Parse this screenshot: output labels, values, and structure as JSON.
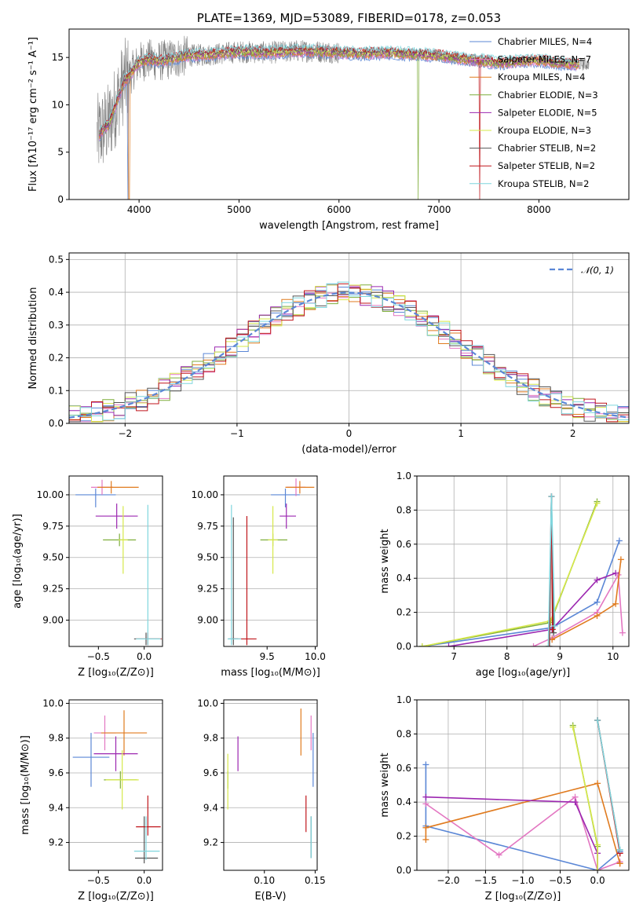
{
  "colors": {
    "chabrier_miles": "#5b87d6",
    "salpeter_miles": "#e377c2",
    "kroupa_miles": "#e07b1f",
    "chabrier_elodie": "#7fae3c",
    "salpeter_elodie": "#9c27b0",
    "kroupa_elodie": "#d6e84a",
    "chabrier_stelib": "#555555",
    "salpeter_stelib": "#c0161c",
    "kroupa_stelib": "#7fd6de",
    "gaussian": "#5b87d6",
    "grid": "#b0b0b0"
  },
  "chart_data": [
    {
      "id": "spectrum",
      "type": "line",
      "title": "PLATE=1369, MJD=53089, FIBERID=0178, z=0.053",
      "xlabel": "wavelength [Angstrom, rest frame]",
      "ylabel": "Flux [fλ10⁻¹⁷ erg cm⁻² s⁻¹ A⁻¹]",
      "xlim": [
        3300,
        8900
      ],
      "ylim": [
        0,
        18
      ],
      "xticks": [
        "4000",
        "5000",
        "6000",
        "7000",
        "8000"
      ],
      "yticks": [
        "0",
        "5",
        "10",
        "15"
      ],
      "grid": false,
      "legend_position": "top-right",
      "legend": [
        "Chabrier MILES, N_SSP=4",
        "Salpeter MILES, N_SSP=7",
        "Kroupa MILES, N_SSP=4",
        "Chabrier ELODIE, N_SSP=3",
        "Salpeter ELODIE, N_SSP=5",
        "Kroupa ELODIE, N_SSP=3",
        "Chabrier STELIB, N_SSP=2",
        "Salpeter STELIB, N_SSP=2",
        "Kroupa STELIB, N_SSP=2"
      ],
      "model_continuum": {
        "x": [
          3600,
          3650,
          3700,
          3750,
          3800,
          3850,
          3900,
          3950,
          4000,
          4100,
          4200,
          4300,
          4400,
          4500,
          4700,
          5000,
          5300,
          5600,
          5900,
          6200,
          6500,
          6800,
          7000,
          7200,
          7400,
          7600,
          7800,
          8000,
          8200,
          8400
        ],
        "y": [
          6.8,
          7.5,
          8.0,
          9.5,
          11.0,
          12.5,
          13.0,
          13.8,
          14.5,
          14.8,
          14.6,
          14.8,
          15.0,
          15.2,
          15.3,
          15.6,
          15.5,
          15.7,
          15.6,
          15.4,
          15.5,
          15.3,
          15.2,
          14.9,
          14.7,
          14.4,
          14.6,
          14.7,
          14.4,
          14.3
        ]
      }
    },
    {
      "id": "residual-histogram",
      "type": "step-histogram",
      "xlabel": "(data-model)/error",
      "ylabel": "Normed distribution",
      "xlim": [
        -2.5,
        2.5
      ],
      "ylim": [
        0,
        0.52
      ],
      "xticks": [
        "−2",
        "−1",
        "0",
        "1",
        "2"
      ],
      "yticks": [
        "0.0",
        "0.1",
        "0.2",
        "0.3",
        "0.4",
        "0.5"
      ],
      "grid": true,
      "legend_position": "top-right",
      "legend": [
        "𝒩(0, 1)"
      ],
      "bin_width": 0.1
    },
    {
      "id": "age-vs-Z",
      "type": "errorbar",
      "xlabel": "Z [log₁₀(Z/Z⊙)]",
      "ylabel": "age  [log₁₀(age/yr)]",
      "xlim": [
        -0.82,
        0.2
      ],
      "ylim": [
        8.79,
        10.15
      ],
      "xticks": [
        "−0.5",
        "0.0"
      ],
      "xtick_values": [
        -0.5,
        0.0
      ],
      "yticks": [
        "9.00",
        "9.25",
        "9.50",
        "9.75",
        "10.00"
      ],
      "ytick_values": [
        9.0,
        9.25,
        9.5,
        9.75,
        10.0
      ],
      "points": [
        {
          "series": "Chabrier MILES",
          "x": -0.53,
          "xerr": [
            0.22,
            0.22
          ],
          "y": 10.0,
          "yerr": [
            0.1,
            0.05
          ]
        },
        {
          "series": "Salpeter MILES",
          "x": -0.46,
          "xerr": [
            0.12,
            0.12
          ],
          "y": 10.06,
          "yerr": [
            0.06,
            0.06
          ]
        },
        {
          "series": "Kroupa MILES",
          "x": -0.36,
          "xerr": [
            0.15,
            0.3
          ],
          "y": 10.06,
          "yerr": [
            0.05,
            0.05
          ]
        },
        {
          "series": "Chabrier ELODIE",
          "x": -0.27,
          "xerr": [
            0.18,
            0.18
          ],
          "y": 9.64,
          "yerr": [
            0.05,
            0.05
          ]
        },
        {
          "series": "Salpeter ELODIE",
          "x": -0.3,
          "xerr": [
            0.23,
            0.23
          ],
          "y": 9.83,
          "yerr": [
            0.1,
            0.1
          ]
        },
        {
          "series": "Kroupa ELODIE",
          "x": -0.23,
          "xerr": [
            0.05,
            0.05
          ],
          "y": 9.64,
          "yerr": [
            0.27,
            0.27
          ]
        },
        {
          "series": "Chabrier STELIB",
          "x": 0.02,
          "xerr": [
            0.13,
            0.15
          ],
          "y": 8.85,
          "yerr": [
            0.05,
            0.05
          ]
        },
        {
          "series": "Salpeter STELIB",
          "x": 0.04,
          "xerr": [
            0.13,
            0.15
          ],
          "y": 8.85,
          "yerr": [
            0.05,
            0.05
          ]
        },
        {
          "series": "Kroupa STELIB",
          "x": 0.04,
          "xerr": [
            0.13,
            0.14
          ],
          "y": 8.85,
          "yerr": [
            0.05,
            1.07
          ]
        }
      ]
    },
    {
      "id": "age-vs-mass",
      "type": "errorbar",
      "xlabel": "mass [log₁₀(M/M⊙)]",
      "ylabel": "",
      "xlim": [
        9.05,
        10.02
      ],
      "ylim": [
        8.79,
        10.15
      ],
      "xticks": [
        "9.5",
        "10.0"
      ],
      "xtick_values": [
        9.5,
        10.0
      ],
      "yticks": [
        "9.00",
        "9.25",
        "9.50",
        "9.75",
        "10.00"
      ],
      "ytick_values": [
        9.0,
        9.25,
        9.5,
        9.75,
        10.0
      ],
      "points": [
        {
          "series": "Chabrier MILES",
          "x": 9.69,
          "xerr": [
            0.15,
            0.15
          ],
          "y": 10.0,
          "yerr": [
            0.1,
            0.05
          ]
        },
        {
          "series": "Salpeter MILES",
          "x": 9.8,
          "xerr": [
            0.1,
            0.1
          ],
          "y": 10.06,
          "yerr": [
            0.07,
            0.07
          ]
        },
        {
          "series": "Kroupa MILES",
          "x": 9.84,
          "xerr": [
            0.15,
            0.15
          ],
          "y": 10.06,
          "yerr": [
            0.05,
            0.05
          ]
        },
        {
          "series": "Chabrier ELODIE",
          "x": 9.56,
          "xerr": [
            0.13,
            0.15
          ],
          "y": 9.64,
          "yerr": [
            0.05,
            0.05
          ]
        },
        {
          "series": "Salpeter ELODIE",
          "x": 9.7,
          "xerr": [
            0.07,
            0.1
          ],
          "y": 9.83,
          "yerr": [
            0.1,
            0.1
          ]
        },
        {
          "series": "Kroupa ELODIE",
          "x": 9.56,
          "xerr": [
            0.05,
            0.05
          ],
          "y": 9.64,
          "yerr": [
            0.27,
            0.27
          ]
        },
        {
          "series": "Chabrier STELIB",
          "x": 9.15,
          "xerr": [
            0.05,
            0.05
          ],
          "y": 8.85,
          "yerr": [
            0.05,
            0.97
          ]
        },
        {
          "series": "Salpeter STELIB",
          "x": 9.29,
          "xerr": [
            0.15,
            0.1
          ],
          "y": 8.85,
          "yerr": [
            0.05,
            0.98
          ]
        },
        {
          "series": "Kroupa STELIB",
          "x": 9.13,
          "xerr": [
            0.04,
            0.1
          ],
          "y": 8.85,
          "yerr": [
            0.05,
            1.07
          ]
        }
      ]
    },
    {
      "id": "mass-weight-vs-age",
      "type": "line",
      "xlabel": "age  [log₁₀(age/yr)]",
      "ylabel": "mass weight",
      "xlim": [
        6.3,
        10.3
      ],
      "ylim": [
        0,
        1
      ],
      "xticks": [
        "7",
        "8",
        "9",
        "10"
      ],
      "xtick_values": [
        7,
        8,
        9,
        10
      ],
      "yticks": [
        "0.0",
        "0.2",
        "0.4",
        "0.6",
        "0.8",
        "1.0"
      ],
      "ytick_values": [
        0,
        0.2,
        0.4,
        0.6,
        0.8,
        1.0
      ],
      "grid": true,
      "series": [
        {
          "name": "Chabrier MILES",
          "x": [
            6.4,
            8.85,
            9.7,
            10.12
          ],
          "y": [
            0.0,
            0.11,
            0.26,
            0.62
          ]
        },
        {
          "name": "Salpeter MILES",
          "x": [
            8.5,
            8.85,
            9.7,
            10.1,
            10.18
          ],
          "y": [
            0.0,
            0.05,
            0.2,
            0.42,
            0.08
          ]
        },
        {
          "name": "Kroupa MILES",
          "x": [
            8.85,
            9.7,
            10.05,
            10.15
          ],
          "y": [
            0.04,
            0.18,
            0.25,
            0.51
          ]
        },
        {
          "name": "Chabrier ELODIE",
          "x": [
            6.4,
            8.82,
            9.7
          ],
          "y": [
            0.0,
            0.14,
            0.85
          ]
        },
        {
          "name": "Salpeter ELODIE",
          "x": [
            6.9,
            8.85,
            9.7,
            10.05
          ],
          "y": [
            0.0,
            0.1,
            0.39,
            0.43
          ]
        },
        {
          "name": "Kroupa ELODIE",
          "x": [
            6.4,
            8.82,
            9.7
          ],
          "y": [
            0.0,
            0.15,
            0.84
          ]
        },
        {
          "name": "Chabrier STELIB",
          "x": [
            8.8,
            8.84,
            8.88
          ],
          "y": [
            0.0,
            0.88,
            0.08
          ]
        },
        {
          "name": "Salpeter STELIB",
          "x": [
            8.79,
            8.84,
            8.86
          ],
          "y": [
            0.0,
            0.88,
            0.1
          ]
        },
        {
          "name": "Kroupa STELIB",
          "x": [
            8.78,
            8.84,
            8.9
          ],
          "y": [
            0.0,
            0.88,
            0.12
          ]
        }
      ]
    },
    {
      "id": "mass-vs-Z",
      "type": "errorbar",
      "xlabel": "Z [log₁₀(Z/Z⊙)]",
      "ylabel": "mass [log₁₀(M/M⊙)]",
      "xlim": [
        -0.82,
        0.2
      ],
      "ylim": [
        9.04,
        10.02
      ],
      "xticks": [
        "−0.5",
        "0.0"
      ],
      "xtick_values": [
        -0.5,
        0.0
      ],
      "yticks": [
        "9.2",
        "9.4",
        "9.6",
        "9.8",
        "10.0"
      ],
      "ytick_values": [
        9.2,
        9.4,
        9.6,
        9.8,
        10.0
      ],
      "points": [
        {
          "series": "Chabrier MILES",
          "x": -0.58,
          "xerr": [
            0.2,
            0.2
          ],
          "y": 9.69,
          "yerr": [
            0.17,
            0.14
          ]
        },
        {
          "series": "Salpeter MILES",
          "x": -0.43,
          "xerr": [
            0.12,
            0.12
          ],
          "y": 9.83,
          "yerr": [
            0.1,
            0.1
          ]
        },
        {
          "series": "Kroupa MILES",
          "x": -0.22,
          "xerr": [
            0.25,
            0.25
          ],
          "y": 9.83,
          "yerr": [
            0.13,
            0.13
          ]
        },
        {
          "series": "Chabrier ELODIE",
          "x": -0.26,
          "xerr": [
            0.18,
            0.18
          ],
          "y": 9.56,
          "yerr": [
            0.05,
            0.05
          ]
        },
        {
          "series": "Salpeter ELODIE",
          "x": -0.31,
          "xerr": [
            0.24,
            0.24
          ],
          "y": 9.71,
          "yerr": [
            0.1,
            0.1
          ]
        },
        {
          "series": "Kroupa ELODIE",
          "x": -0.24,
          "xerr": [
            0.18,
            0.18
          ],
          "y": 9.56,
          "yerr": [
            0.17,
            0.17
          ]
        },
        {
          "series": "Chabrier STELIB",
          "x": 0.0,
          "xerr": [
            0.1,
            0.15
          ],
          "y": 9.11,
          "yerr": [
            0.03,
            0.24
          ]
        },
        {
          "series": "Salpeter STELIB",
          "x": 0.04,
          "xerr": [
            0.13,
            0.14
          ],
          "y": 9.29,
          "yerr": [
            0.05,
            0.18
          ]
        },
        {
          "series": "Kroupa STELIB",
          "x": 0.02,
          "xerr": [
            0.13,
            0.15
          ],
          "y": 9.15,
          "yerr": [
            0.05,
            0.2
          ]
        }
      ]
    },
    {
      "id": "mass-vs-EBV",
      "type": "errorbar",
      "xlabel": "E(B-V)",
      "ylabel": "",
      "xlim": [
        0.06,
        0.152
      ],
      "ylim": [
        9.04,
        10.02
      ],
      "xticks": [
        "0.10",
        "0.15"
      ],
      "xtick_values": [
        0.1,
        0.15
      ],
      "yticks": [
        "9.2",
        "9.4",
        "9.6",
        "9.8",
        "10.0"
      ],
      "ytick_values": [
        9.2,
        9.4,
        9.6,
        9.8,
        10.0
      ],
      "points": [
        {
          "series": "Chabrier MILES",
          "x": 0.148,
          "xerr": [
            0,
            0
          ],
          "y": 9.69,
          "yerr": [
            0.17,
            0.14
          ]
        },
        {
          "series": "Salpeter MILES",
          "x": 0.146,
          "xerr": [
            0,
            0
          ],
          "y": 9.83,
          "yerr": [
            0.1,
            0.1
          ]
        },
        {
          "series": "Kroupa MILES",
          "x": 0.136,
          "xerr": [
            0,
            0
          ],
          "y": 9.83,
          "yerr": [
            0.13,
            0.14
          ]
        },
        {
          "series": "Chabrier ELODIE",
          "x": 0.064,
          "xerr": [
            0,
            0
          ],
          "y": 9.56,
          "yerr": [
            0.05,
            0.05
          ]
        },
        {
          "series": "Salpeter ELODIE",
          "x": 0.074,
          "xerr": [
            0,
            0
          ],
          "y": 9.71,
          "yerr": [
            0.1,
            0.1
          ]
        },
        {
          "series": "Kroupa ELODIE",
          "x": 0.064,
          "xerr": [
            0,
            0
          ],
          "y": 9.56,
          "yerr": [
            0.17,
            0.15
          ]
        },
        {
          "series": "Chabrier STELIB",
          "x": 0.146,
          "xerr": [
            0,
            0
          ],
          "y": 9.25,
          "yerr": [
            0.14,
            0.1
          ]
        },
        {
          "series": "Salpeter STELIB",
          "x": 0.141,
          "xerr": [
            0,
            0
          ],
          "y": 9.37,
          "yerr": [
            0.11,
            0.1
          ]
        },
        {
          "series": "Kroupa STELIB",
          "x": 0.146,
          "xerr": [
            0,
            0
          ],
          "y": 9.25,
          "yerr": [
            0.14,
            0.1
          ]
        }
      ]
    },
    {
      "id": "mass-weight-vs-Z",
      "type": "line",
      "xlabel": "Z [log₁₀(Z/Z⊙)]",
      "ylabel": "mass weight",
      "xlim": [
        -2.42,
        0.42
      ],
      "ylim": [
        0,
        1
      ],
      "xticks": [
        "−2.0",
        "−1.5",
        "−1.0",
        "−0.5",
        "0.0"
      ],
      "xtick_values": [
        -2.0,
        -1.5,
        -1.0,
        -0.5,
        0.0
      ],
      "yticks": [
        "0.0",
        "0.2",
        "0.4",
        "0.6",
        "0.8",
        "1.0"
      ],
      "ytick_values": [
        0,
        0.2,
        0.4,
        0.6,
        0.8,
        1.0
      ],
      "grid": true,
      "series": [
        {
          "name": "Chabrier MILES",
          "x": [
            -2.3,
            -2.3,
            0.0,
            0.3,
            0.3
          ],
          "y": [
            0.62,
            0.26,
            0.0,
            0.11,
            0.11
          ]
        },
        {
          "name": "Salpeter MILES",
          "x": [
            -2.3,
            -1.32,
            -0.3,
            0.0,
            0.3
          ],
          "y": [
            0.39,
            0.09,
            0.43,
            0.0,
            0.05
          ]
        },
        {
          "name": "Kroupa MILES",
          "x": [
            -2.3,
            -2.3,
            0.0,
            0.3,
            0.3
          ],
          "y": [
            0.18,
            0.25,
            0.51,
            0.04,
            0.04
          ]
        },
        {
          "name": "Chabrier ELODIE",
          "x": [
            -0.33,
            0.0,
            0.0
          ],
          "y": [
            0.85,
            0.14,
            0.0
          ]
        },
        {
          "name": "Salpeter ELODIE",
          "x": [
            -2.3,
            -0.3,
            0.0,
            0.0
          ],
          "y": [
            0.43,
            0.4,
            0.1,
            0.0
          ]
        },
        {
          "name": "Kroupa ELODIE",
          "x": [
            -0.33,
            0.0,
            0.0
          ],
          "y": [
            0.84,
            0.15,
            0.0
          ]
        },
        {
          "name": "Chabrier STELIB",
          "x": [
            0.0,
            0.0,
            0.3
          ],
          "y": [
            0.88,
            0.88,
            0.12
          ]
        },
        {
          "name": "Salpeter STELIB",
          "x": [
            0.0,
            0.3,
            0.3
          ],
          "y": [
            0.88,
            0.1,
            0.1
          ]
        },
        {
          "name": "Kroupa STELIB",
          "x": [
            0.0,
            0.3,
            0.3
          ],
          "y": [
            0.88,
            0.12,
            0.12
          ]
        }
      ]
    }
  ]
}
